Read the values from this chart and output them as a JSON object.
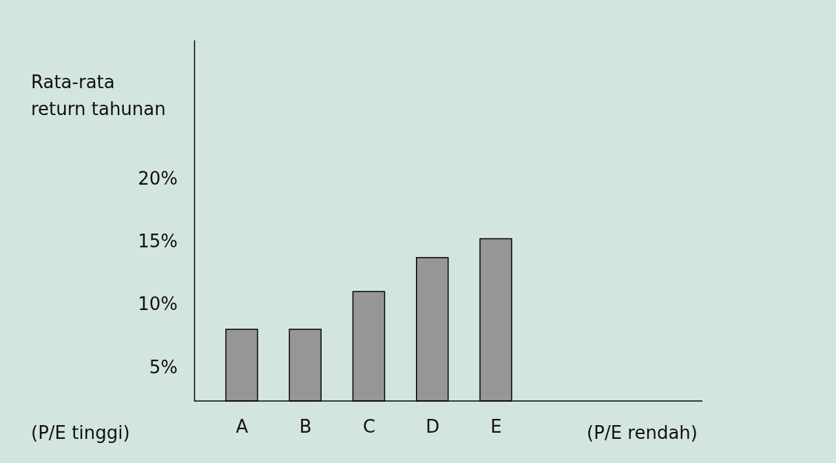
{
  "chart_data": {
    "type": "bar",
    "ylabel": "Rata-rata return tahunan",
    "categories": [
      "A",
      "B",
      "C",
      "D",
      "E"
    ],
    "values": [
      8,
      8,
      11,
      13.7,
      15.2
    ],
    "color": "#969696",
    "ylim": [
      2.3,
      31
    ],
    "yticks": [
      {
        "value": 5,
        "label": "5%"
      },
      {
        "value": 10,
        "label": "10%"
      },
      {
        "value": 15,
        "label": "15%"
      },
      {
        "value": 20,
        "label": "20%"
      }
    ],
    "annotations": [
      "(P/E tinggi)",
      "(P/E rendah)"
    ]
  }
}
